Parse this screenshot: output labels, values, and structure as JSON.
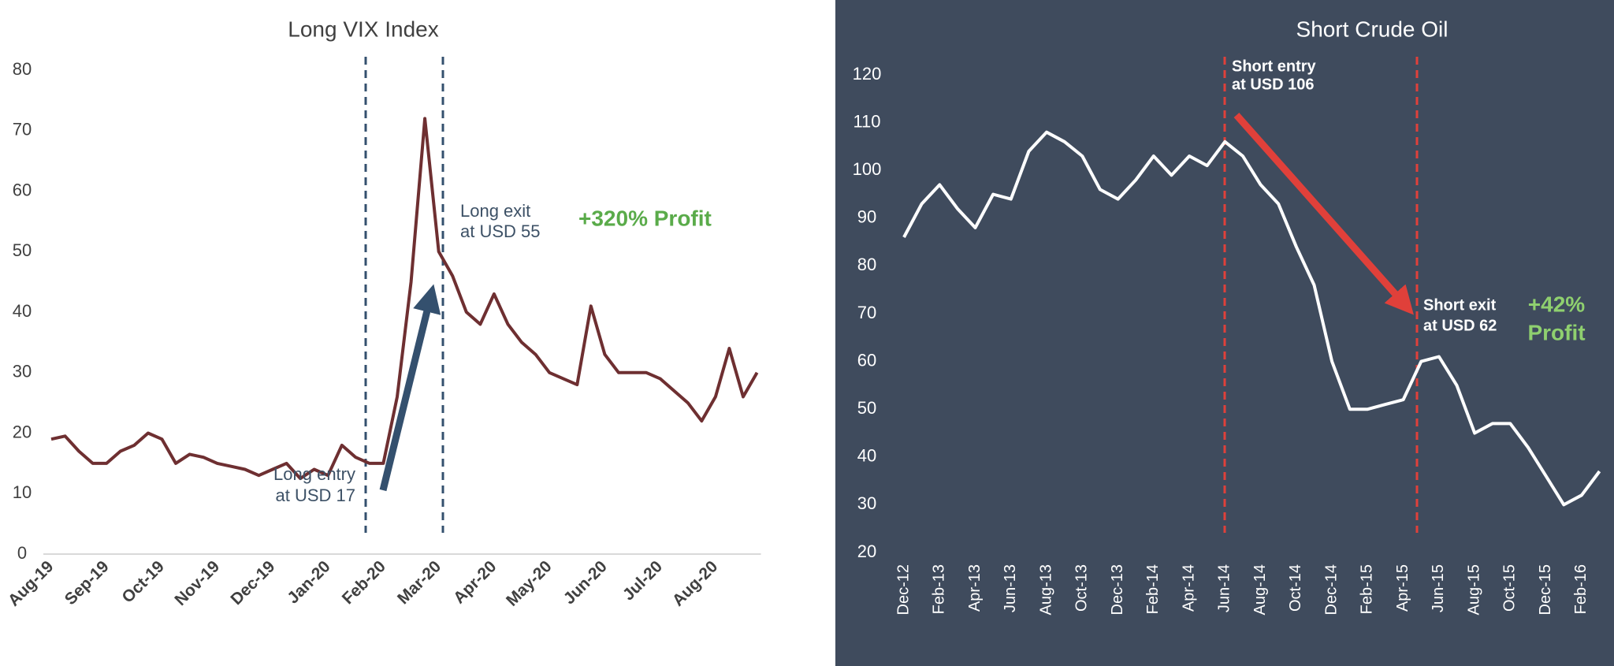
{
  "chart_data": [
    {
      "type": "line",
      "title": "Long VIX Index",
      "color": "#6e2f31",
      "categories": [
        "Aug-19",
        null,
        null,
        null,
        "Sep-19",
        null,
        null,
        null,
        "Oct-19",
        null,
        null,
        null,
        "Nov-19",
        null,
        null,
        null,
        "Dec-19",
        null,
        null,
        null,
        "Jan-20",
        null,
        null,
        null,
        "Feb-20",
        null,
        null,
        null,
        "Mar-20",
        null,
        null,
        null,
        "Apr-20",
        null,
        null,
        null,
        "May-20",
        null,
        null,
        null,
        "Jun-20",
        null,
        null,
        null,
        "Jul-20",
        null,
        null,
        null,
        "Aug-20",
        null,
        null,
        null
      ],
      "values": [
        19,
        19.5,
        17,
        15,
        15,
        17,
        18,
        20,
        19,
        15,
        16.5,
        16,
        15,
        14.5,
        14,
        13,
        14,
        15,
        12.5,
        14,
        13,
        18,
        16,
        15,
        15,
        26,
        45,
        72,
        50,
        46,
        40,
        38,
        43,
        38,
        35,
        33,
        30,
        29,
        28,
        41,
        33,
        30,
        30,
        30,
        29,
        27,
        25,
        22,
        26,
        34,
        26,
        30
      ],
      "ylim": [
        0,
        80
      ],
      "yticks": [
        0,
        10,
        20,
        30,
        40,
        50,
        60,
        70,
        80
      ],
      "annotations": [
        [
          "Long entry",
          "at USD 17"
        ],
        [
          "Long exit",
          "at USD 55"
        ],
        [
          "+320% Profit"
        ]
      ]
    },
    {
      "type": "line",
      "title": "Short Crude Oil",
      "color": "#ffffff",
      "categories": [
        "Dec-12",
        null,
        "Feb-13",
        null,
        "Apr-13",
        null,
        "Jun-13",
        null,
        "Aug-13",
        null,
        "Oct-13",
        null,
        "Dec-13",
        null,
        "Feb-14",
        null,
        "Apr-14",
        null,
        "Jun-14",
        null,
        "Aug-14",
        null,
        "Oct-14",
        null,
        "Dec-14",
        null,
        "Feb-15",
        null,
        "Apr-15",
        null,
        "Jun-15",
        null,
        "Aug-15",
        null,
        "Oct-15",
        null,
        "Dec-15",
        null,
        "Feb-16",
        null
      ],
      "values": [
        86,
        93,
        97,
        92,
        88,
        95,
        94,
        104,
        108,
        106,
        103,
        96,
        94,
        98,
        103,
        99,
        103,
        101,
        106,
        103,
        97,
        93,
        84,
        76,
        60,
        50,
        50,
        51,
        52,
        60,
        61,
        55,
        45,
        47,
        47,
        42,
        36,
        30,
        32,
        37
      ],
      "ylim": [
        20,
        120
      ],
      "yticks": [
        20,
        30,
        40,
        50,
        60,
        70,
        80,
        90,
        100,
        110,
        120
      ],
      "annotations": [
        [
          "Short entry",
          "at USD 106"
        ],
        [
          "Short exit",
          "at USD 62"
        ],
        [
          "+42%",
          "Profit"
        ]
      ]
    }
  ]
}
